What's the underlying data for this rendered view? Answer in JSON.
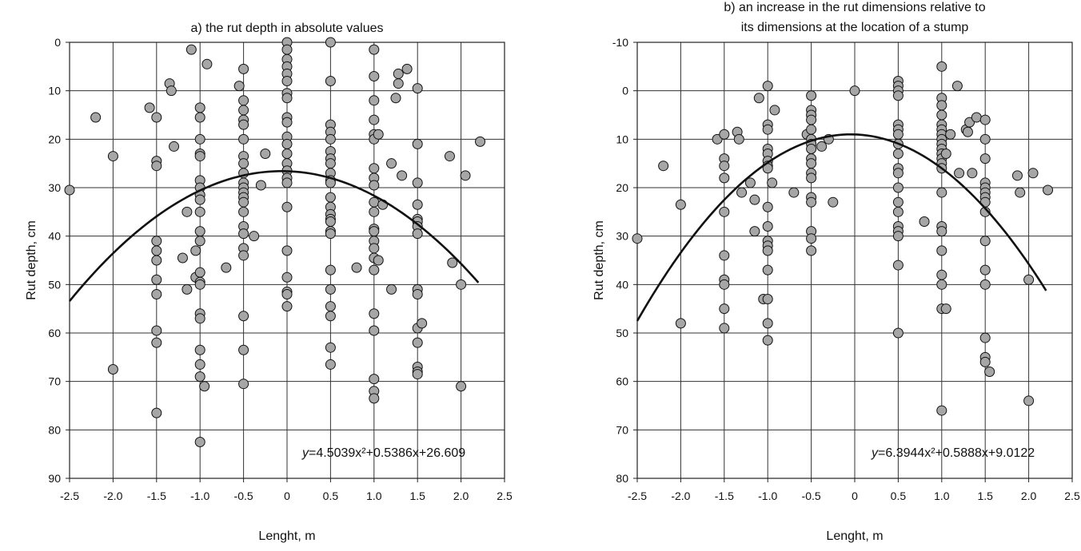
{
  "chart_data": [
    {
      "type": "scatter",
      "title": "a) the rut depth in absolute values",
      "xlabel": "Lenght, m",
      "ylabel": "Rut depth, cm",
      "xlim": [
        -2.5,
        2.5
      ],
      "ylim": [
        0,
        90
      ],
      "y_inverted": true,
      "grid": true,
      "x_ticks": [
        "-2.5",
        "-2.0",
        "-1.5",
        "-1.0",
        "-0.5",
        "0",
        "0.5",
        "1.0",
        "1.5",
        "2.0",
        "2.5"
      ],
      "y_ticks": [
        "0",
        "10",
        "20",
        "30",
        "40",
        "50",
        "60",
        "70",
        "80",
        "90"
      ],
      "equation": {
        "prefix": "y",
        "text": "=4.5039x²+0.5386x+26.609"
      },
      "trend": {
        "a": 4.5039,
        "b": 0.5386,
        "c": 26.609,
        "x_range": [
          -2.5,
          2.2
        ]
      },
      "points": [
        [
          -2.5,
          30.5
        ],
        [
          -2.2,
          15.5
        ],
        [
          -2.0,
          23.5
        ],
        [
          -2.0,
          67.5
        ],
        [
          -1.58,
          13.5
        ],
        [
          -1.5,
          15.5
        ],
        [
          -1.5,
          24.5
        ],
        [
          -1.5,
          25.5
        ],
        [
          -1.5,
          41
        ],
        [
          -1.5,
          43
        ],
        [
          -1.5,
          45
        ],
        [
          -1.5,
          49
        ],
        [
          -1.5,
          52
        ],
        [
          -1.5,
          59.5
        ],
        [
          -1.5,
          62
        ],
        [
          -1.5,
          76.5
        ],
        [
          -1.35,
          8.5
        ],
        [
          -1.33,
          10
        ],
        [
          -1.3,
          21.5
        ],
        [
          -1.2,
          44.5
        ],
        [
          -1.15,
          35
        ],
        [
          -1.15,
          51
        ],
        [
          -1.1,
          1.5
        ],
        [
          -1.05,
          43
        ],
        [
          -1.05,
          48.5
        ],
        [
          -1.0,
          13.5
        ],
        [
          -1.0,
          15.5
        ],
        [
          -1.0,
          20
        ],
        [
          -1.0,
          23
        ],
        [
          -1.0,
          23.5
        ],
        [
          -1.0,
          28.5
        ],
        [
          -1.0,
          30
        ],
        [
          -1.0,
          31.5
        ],
        [
          -1.0,
          32.5
        ],
        [
          -1.0,
          35
        ],
        [
          -1.0,
          39
        ],
        [
          -1.0,
          41
        ],
        [
          -1.0,
          47.5
        ],
        [
          -1.0,
          49.5
        ],
        [
          -1.0,
          50
        ],
        [
          -1.0,
          56
        ],
        [
          -1.0,
          57
        ],
        [
          -1.0,
          63.5
        ],
        [
          -1.0,
          66.5
        ],
        [
          -1.0,
          69
        ],
        [
          -1.0,
          82.5
        ],
        [
          -0.95,
          71
        ],
        [
          -0.92,
          4.5
        ],
        [
          -0.7,
          46.5
        ],
        [
          -0.55,
          9
        ],
        [
          -0.5,
          5.5
        ],
        [
          -0.5,
          12
        ],
        [
          -0.5,
          14
        ],
        [
          -0.5,
          16
        ],
        [
          -0.5,
          17
        ],
        [
          -0.5,
          20
        ],
        [
          -0.5,
          23.5
        ],
        [
          -0.5,
          25
        ],
        [
          -0.5,
          27
        ],
        [
          -0.5,
          29
        ],
        [
          -0.5,
          30
        ],
        [
          -0.5,
          31
        ],
        [
          -0.5,
          32
        ],
        [
          -0.5,
          33
        ],
        [
          -0.5,
          35
        ],
        [
          -0.5,
          38
        ],
        [
          -0.5,
          39.5
        ],
        [
          -0.5,
          42.5
        ],
        [
          -0.5,
          44
        ],
        [
          -0.5,
          56.5
        ],
        [
          -0.5,
          63.5
        ],
        [
          -0.5,
          70.5
        ],
        [
          -0.38,
          40
        ],
        [
          -0.25,
          23
        ],
        [
          -0.3,
          29.5
        ],
        [
          0,
          0
        ],
        [
          0,
          1.5
        ],
        [
          0,
          3.5
        ],
        [
          0,
          5
        ],
        [
          0,
          6.5
        ],
        [
          0,
          8
        ],
        [
          0,
          10.5
        ],
        [
          0,
          11.5
        ],
        [
          0,
          15.5
        ],
        [
          0,
          16.5
        ],
        [
          0,
          19.5
        ],
        [
          0,
          21
        ],
        [
          0,
          23
        ],
        [
          0,
          25
        ],
        [
          0,
          26.5
        ],
        [
          0,
          28
        ],
        [
          0,
          29
        ],
        [
          0,
          34
        ],
        [
          0,
          43
        ],
        [
          0,
          48.5
        ],
        [
          0,
          51.5
        ],
        [
          0,
          52
        ],
        [
          0,
          54.5
        ],
        [
          0.5,
          0
        ],
        [
          0.5,
          8
        ],
        [
          0.5,
          17
        ],
        [
          0.5,
          18.5
        ],
        [
          0.5,
          20
        ],
        [
          0.5,
          22.5
        ],
        [
          0.5,
          24
        ],
        [
          0.5,
          25
        ],
        [
          0.5,
          27
        ],
        [
          0.5,
          28.5
        ],
        [
          0.5,
          29
        ],
        [
          0.5,
          32
        ],
        [
          0.5,
          34
        ],
        [
          0.5,
          35.5
        ],
        [
          0.5,
          36.5
        ],
        [
          0.5,
          37
        ],
        [
          0.5,
          39
        ],
        [
          0.5,
          39.5
        ],
        [
          0.5,
          47
        ],
        [
          0.5,
          51
        ],
        [
          0.5,
          54.5
        ],
        [
          0.5,
          56.5
        ],
        [
          0.5,
          63
        ],
        [
          0.5,
          66.5
        ],
        [
          0.8,
          46.5
        ],
        [
          1.0,
          1.5
        ],
        [
          1.0,
          7
        ],
        [
          1.0,
          12
        ],
        [
          1.0,
          16
        ],
        [
          1.0,
          19
        ],
        [
          1.0,
          20
        ],
        [
          1.0,
          26
        ],
        [
          1.0,
          28
        ],
        [
          1.0,
          29.5
        ],
        [
          1.0,
          33
        ],
        [
          1.0,
          35
        ],
        [
          1.0,
          38.5
        ],
        [
          1.0,
          39
        ],
        [
          1.0,
          41
        ],
        [
          1.0,
          42.5
        ],
        [
          1.0,
          44.5
        ],
        [
          1.0,
          47
        ],
        [
          1.0,
          56
        ],
        [
          1.0,
          59.5
        ],
        [
          1.0,
          69.5
        ],
        [
          1.0,
          72
        ],
        [
          1.0,
          73.5
        ],
        [
          1.05,
          19
        ],
        [
          1.05,
          45
        ],
        [
          1.1,
          33.5
        ],
        [
          1.2,
          25
        ],
        [
          1.25,
          11.5
        ],
        [
          1.2,
          51
        ],
        [
          1.28,
          6.5
        ],
        [
          1.28,
          8.5
        ],
        [
          1.32,
          27.5
        ],
        [
          1.38,
          5.5
        ],
        [
          1.5,
          9.5
        ],
        [
          1.5,
          21
        ],
        [
          1.5,
          29
        ],
        [
          1.5,
          33.5
        ],
        [
          1.5,
          36.5
        ],
        [
          1.5,
          37
        ],
        [
          1.5,
          38
        ],
        [
          1.5,
          39.5
        ],
        [
          1.5,
          51
        ],
        [
          1.5,
          52
        ],
        [
          1.5,
          59
        ],
        [
          1.5,
          62
        ],
        [
          1.5,
          67
        ],
        [
          1.5,
          68
        ],
        [
          1.5,
          68.5
        ],
        [
          1.55,
          58
        ],
        [
          1.87,
          23.5
        ],
        [
          1.9,
          45.5
        ],
        [
          2.0,
          50
        ],
        [
          2.0,
          71
        ],
        [
          2.05,
          27.5
        ],
        [
          2.22,
          20.5
        ]
      ]
    },
    {
      "type": "scatter",
      "title": "b) an increase in the rut dimensions relative to its dimensions at the location of a stump",
      "title_lines": [
        "b) an increase in the rut dimensions relative to",
        "its dimensions at the location of a stump"
      ],
      "xlabel": "Lenght, m",
      "ylabel": "Rut depth, cm",
      "xlim": [
        -2.5,
        2.5
      ],
      "ylim": [
        -10,
        80
      ],
      "y_inverted": true,
      "grid": true,
      "x_ticks": [
        "-2.5",
        "-2.0",
        "-1.5",
        "-1.0",
        "-0.5",
        "0",
        "0.5",
        "1.0",
        "1.5",
        "2.0",
        "2.5"
      ],
      "y_ticks": [
        "-10",
        "0",
        "10",
        "20",
        "30",
        "40",
        "50",
        "60",
        "70",
        "80"
      ],
      "equation": {
        "prefix": "y",
        "text": "=6.3944x²+0.5888x+9.0122"
      },
      "trend": {
        "a": 6.3944,
        "b": 0.5888,
        "c": 9.0122,
        "x_range": [
          -2.5,
          2.2
        ]
      },
      "points": [
        [
          -2.5,
          30.5
        ],
        [
          -2.2,
          15.5
        ],
        [
          -2.0,
          23.5
        ],
        [
          -2.0,
          48
        ],
        [
          -1.58,
          10
        ],
        [
          -1.5,
          9
        ],
        [
          -1.5,
          14
        ],
        [
          -1.5,
          15.5
        ],
        [
          -1.5,
          18
        ],
        [
          -1.5,
          25
        ],
        [
          -1.5,
          34
        ],
        [
          -1.5,
          39
        ],
        [
          -1.5,
          40
        ],
        [
          -1.5,
          45
        ],
        [
          -1.5,
          49
        ],
        [
          -1.35,
          8.5
        ],
        [
          -1.33,
          10
        ],
        [
          -1.3,
          21
        ],
        [
          -1.2,
          19
        ],
        [
          -1.15,
          22.5
        ],
        [
          -1.15,
          29
        ],
        [
          -1.1,
          1.5
        ],
        [
          -1.05,
          43
        ],
        [
          -1.0,
          -1
        ],
        [
          -1.0,
          7
        ],
        [
          -1.0,
          8
        ],
        [
          -1.0,
          12
        ],
        [
          -1.0,
          13
        ],
        [
          -1.0,
          14.5
        ],
        [
          -1.0,
          15.5
        ],
        [
          -1.0,
          16
        ],
        [
          -1.0,
          24
        ],
        [
          -1.0,
          28
        ],
        [
          -1.0,
          31
        ],
        [
          -1.0,
          32
        ],
        [
          -1.0,
          33
        ],
        [
          -1.0,
          37
        ],
        [
          -1.0,
          43
        ],
        [
          -1.0,
          48
        ],
        [
          -1.0,
          51.5
        ],
        [
          -0.95,
          19
        ],
        [
          -0.92,
          4
        ],
        [
          -0.7,
          21
        ],
        [
          -0.55,
          9
        ],
        [
          -0.5,
          1
        ],
        [
          -0.5,
          4
        ],
        [
          -0.5,
          5
        ],
        [
          -0.5,
          6
        ],
        [
          -0.5,
          8
        ],
        [
          -0.5,
          10
        ],
        [
          -0.5,
          11
        ],
        [
          -0.5,
          12
        ],
        [
          -0.5,
          14
        ],
        [
          -0.5,
          15
        ],
        [
          -0.5,
          17
        ],
        [
          -0.5,
          18
        ],
        [
          -0.5,
          22
        ],
        [
          -0.5,
          23
        ],
        [
          -0.5,
          29
        ],
        [
          -0.5,
          30.5
        ],
        [
          -0.5,
          33
        ],
        [
          -0.38,
          11.5
        ],
        [
          -0.25,
          23
        ],
        [
          -0.3,
          10
        ],
        [
          0,
          0
        ],
        [
          0.5,
          -2
        ],
        [
          0.5,
          -1
        ],
        [
          0.5,
          0
        ],
        [
          0.5,
          1
        ],
        [
          0.5,
          7
        ],
        [
          0.5,
          8
        ],
        [
          0.5,
          9
        ],
        [
          0.5,
          11
        ],
        [
          0.5,
          13
        ],
        [
          0.5,
          16
        ],
        [
          0.5,
          17
        ],
        [
          0.5,
          20
        ],
        [
          0.5,
          23
        ],
        [
          0.5,
          25
        ],
        [
          0.5,
          28
        ],
        [
          0.5,
          29
        ],
        [
          0.5,
          30
        ],
        [
          0.5,
          36
        ],
        [
          0.5,
          50
        ],
        [
          0.8,
          27
        ],
        [
          1.0,
          -5
        ],
        [
          1.0,
          1.5
        ],
        [
          1.0,
          3
        ],
        [
          1.0,
          5
        ],
        [
          1.0,
          7
        ],
        [
          1.0,
          8
        ],
        [
          1.0,
          9
        ],
        [
          1.0,
          10
        ],
        [
          1.0,
          11
        ],
        [
          1.0,
          12
        ],
        [
          1.0,
          13
        ],
        [
          1.0,
          14
        ],
        [
          1.0,
          15
        ],
        [
          1.0,
          16
        ],
        [
          1.0,
          21
        ],
        [
          1.0,
          28
        ],
        [
          1.0,
          29
        ],
        [
          1.0,
          33
        ],
        [
          1.0,
          38
        ],
        [
          1.0,
          40
        ],
        [
          1.0,
          45
        ],
        [
          1.0,
          66
        ],
        [
          1.05,
          13
        ],
        [
          1.05,
          45
        ],
        [
          1.1,
          9
        ],
        [
          1.18,
          -1
        ],
        [
          1.2,
          17
        ],
        [
          1.28,
          8
        ],
        [
          1.3,
          8.5
        ],
        [
          1.32,
          6.5
        ],
        [
          1.35,
          17
        ],
        [
          1.4,
          5.5
        ],
        [
          1.5,
          6
        ],
        [
          1.5,
          10
        ],
        [
          1.5,
          14
        ],
        [
          1.5,
          19
        ],
        [
          1.5,
          20
        ],
        [
          1.5,
          21
        ],
        [
          1.5,
          22
        ],
        [
          1.5,
          23
        ],
        [
          1.5,
          25
        ],
        [
          1.5,
          31
        ],
        [
          1.5,
          37
        ],
        [
          1.5,
          40
        ],
        [
          1.5,
          51
        ],
        [
          1.5,
          55
        ],
        [
          1.5,
          56
        ],
        [
          1.55,
          58
        ],
        [
          1.87,
          17.5
        ],
        [
          1.9,
          21
        ],
        [
          2.0,
          39
        ],
        [
          2.0,
          64
        ],
        [
          2.05,
          17
        ],
        [
          2.22,
          20.5
        ]
      ]
    }
  ]
}
